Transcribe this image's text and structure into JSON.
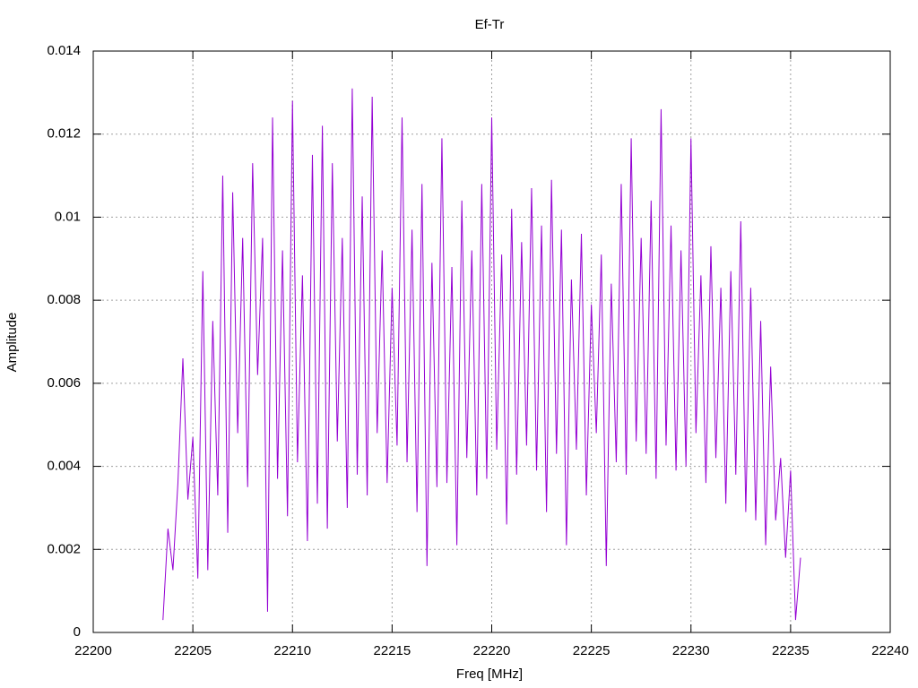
{
  "chart_data": {
    "type": "line",
    "title": "Ef-Tr",
    "x_label": "Freq [MHz]",
    "y_label": "Amplitude",
    "xlim": [
      22200,
      22240
    ],
    "xticks": [
      22200,
      22205,
      22210,
      22215,
      22220,
      22225,
      22230,
      22235,
      22240
    ],
    "ylim": [
      0,
      0.014
    ],
    "yticks": [
      0,
      0.002,
      0.004,
      0.006,
      0.008,
      0.01,
      0.012,
      0.014
    ],
    "grid": true,
    "x": [
      22203.5,
      22203.75,
      22204,
      22204.25,
      22204.5,
      22204.75,
      22205,
      22205.25,
      22205.5,
      22205.75,
      22206,
      22206.25,
      22206.5,
      22206.75,
      22207,
      22207.25,
      22207.5,
      22207.75,
      22208,
      22208.25,
      22208.5,
      22208.75,
      22209,
      22209.25,
      22209.5,
      22209.75,
      22210,
      22210.25,
      22210.5,
      22210.75,
      22211,
      22211.25,
      22211.5,
      22211.75,
      22212,
      22212.25,
      22212.5,
      22212.75,
      22213,
      22213.25,
      22213.5,
      22213.75,
      22214,
      22214.25,
      22214.5,
      22214.75,
      22215,
      22215.25,
      22215.5,
      22215.75,
      22216,
      22216.25,
      22216.5,
      22216.75,
      22217,
      22217.25,
      22217.5,
      22217.75,
      22218,
      22218.25,
      22218.5,
      22218.75,
      22219,
      22219.25,
      22219.5,
      22219.75,
      22220,
      22220.25,
      22220.5,
      22220.75,
      22221,
      22221.25,
      22221.5,
      22221.75,
      22222,
      22222.25,
      22222.5,
      22222.75,
      22223,
      22223.25,
      22223.5,
      22223.75,
      22224,
      22224.25,
      22224.5,
      22224.75,
      22225,
      22225.25,
      22225.5,
      22225.75,
      22226,
      22226.25,
      22226.5,
      22226.75,
      22227,
      22227.25,
      22227.5,
      22227.75,
      22228,
      22228.25,
      22228.5,
      22228.75,
      22229,
      22229.25,
      22229.5,
      22229.75,
      22230,
      22230.25,
      22230.5,
      22230.75,
      22231,
      22231.25,
      22231.5,
      22231.75,
      22232,
      22232.25,
      22232.5,
      22232.75,
      22233,
      22233.25,
      22233.5,
      22233.75,
      22234,
      22234.25,
      22234.5,
      22234.75,
      22235,
      22235.25,
      22235.5
    ],
    "series": [
      {
        "color": "#9400d3",
        "values": [
          0.0003,
          0.0025,
          0.0015,
          0.0036,
          0.0066,
          0.0032,
          0.0047,
          0.0013,
          0.0087,
          0.0015,
          0.0075,
          0.0033,
          0.011,
          0.0024,
          0.0106,
          0.0048,
          0.0095,
          0.0035,
          0.0113,
          0.0062,
          0.0095,
          0.0005,
          0.0124,
          0.0037,
          0.0092,
          0.0028,
          0.0128,
          0.0041,
          0.0086,
          0.0022,
          0.0115,
          0.0031,
          0.0122,
          0.0025,
          0.0113,
          0.0046,
          0.0095,
          0.003,
          0.0131,
          0.0038,
          0.0105,
          0.0033,
          0.0129,
          0.0048,
          0.0092,
          0.0036,
          0.0083,
          0.0045,
          0.0124,
          0.0041,
          0.0097,
          0.0029,
          0.0108,
          0.0016,
          0.0089,
          0.0035,
          0.0119,
          0.0036,
          0.0088,
          0.0021,
          0.0104,
          0.0042,
          0.0092,
          0.0033,
          0.0108,
          0.0037,
          0.0124,
          0.0044,
          0.0091,
          0.0026,
          0.0102,
          0.0038,
          0.0094,
          0.0045,
          0.0107,
          0.0039,
          0.0098,
          0.0029,
          0.0109,
          0.0043,
          0.0097,
          0.0021,
          0.0085,
          0.0044,
          0.0096,
          0.0033,
          0.0079,
          0.0048,
          0.0091,
          0.0016,
          0.0084,
          0.0041,
          0.0108,
          0.0038,
          0.0119,
          0.0046,
          0.0095,
          0.0043,
          0.0104,
          0.0037,
          0.0126,
          0.0045,
          0.0098,
          0.0039,
          0.0092,
          0.004,
          0.0119,
          0.0048,
          0.0086,
          0.0036,
          0.0093,
          0.0042,
          0.0083,
          0.0031,
          0.0087,
          0.0038,
          0.0099,
          0.0029,
          0.0083,
          0.0027,
          0.0075,
          0.0021,
          0.0064,
          0.0027,
          0.0042,
          0.0018,
          0.0039,
          0.0003,
          0.0018
        ]
      }
    ]
  }
}
